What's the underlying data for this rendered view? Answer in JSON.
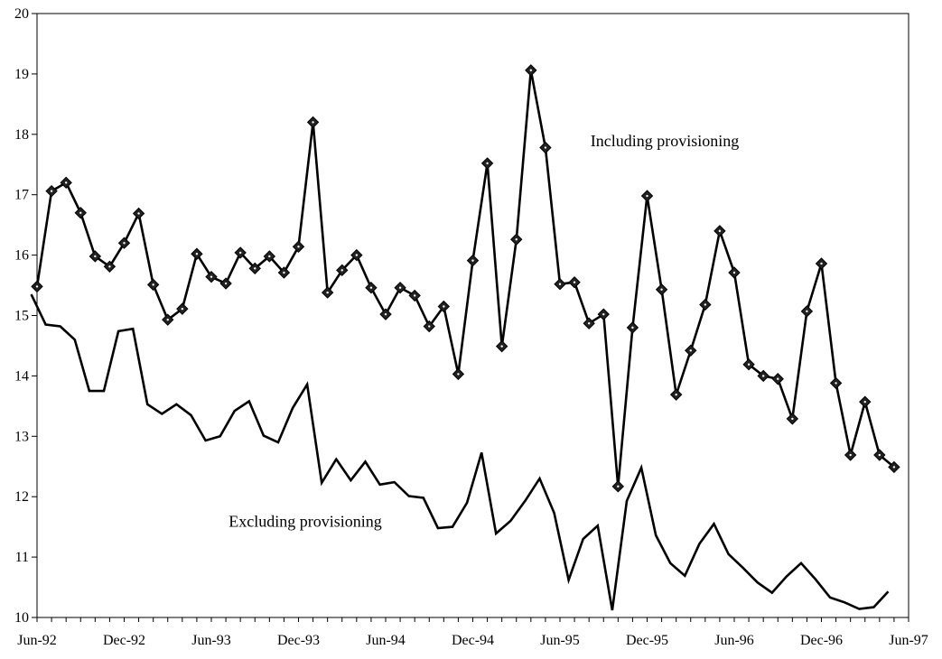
{
  "chart_data": {
    "type": "line",
    "title": "",
    "xlabel": "",
    "ylabel": "",
    "ylim": [
      10,
      20
    ],
    "yticks": [
      10,
      11,
      12,
      13,
      14,
      15,
      16,
      17,
      18,
      19,
      20
    ],
    "x_tick_labels": [
      "Jun-92",
      "Dec-92",
      "Jun-93",
      "Dec-93",
      "Jun-94",
      "Dec-94",
      "Jun-95",
      "Dec-95",
      "Jun-96",
      "Dec-96",
      "Jun-97"
    ],
    "x_tick_positions": [
      0,
      6,
      12,
      18,
      24,
      30,
      36,
      42,
      48,
      54,
      60
    ],
    "x_range": [
      0,
      60
    ],
    "grid": false,
    "legend": "none",
    "series": [
      {
        "label": "Including provisioning",
        "marker": "diamond",
        "color": "#000000",
        "x_start": 0,
        "values": [
          15.48,
          17.06,
          17.2,
          16.7,
          15.98,
          15.81,
          16.2,
          16.69,
          15.51,
          14.93,
          15.11,
          16.02,
          15.64,
          15.53,
          16.04,
          15.78,
          15.98,
          15.71,
          16.14,
          18.2,
          15.38,
          15.75,
          16.0,
          15.46,
          15.02,
          15.46,
          15.33,
          14.82,
          15.15,
          14.03,
          15.91,
          17.52,
          14.49,
          16.26,
          19.06,
          17.78,
          15.52,
          15.55,
          14.87,
          15.02,
          12.17,
          14.8,
          16.98,
          15.43,
          13.69,
          14.42,
          15.18,
          16.4,
          15.71,
          14.19,
          14.0,
          13.95,
          13.29,
          15.07,
          15.86,
          13.88,
          12.69,
          13.57,
          12.69,
          12.49
        ]
      },
      {
        "label": "Excluding provisioning",
        "marker": "none",
        "color": "#000000",
        "x_start": -0.4,
        "values": [
          15.35,
          14.85,
          14.82,
          14.6,
          13.75,
          13.75,
          14.74,
          14.78,
          13.53,
          13.37,
          13.53,
          13.35,
          12.93,
          13.0,
          13.42,
          13.58,
          13.01,
          12.9,
          13.47,
          13.86,
          12.23,
          12.62,
          12.27,
          12.58,
          12.2,
          12.24,
          12.01,
          11.98,
          11.48,
          11.5,
          11.9,
          12.73,
          11.39,
          11.6,
          11.93,
          12.3,
          11.73,
          10.62,
          11.3,
          11.52,
          10.12,
          11.93,
          12.48,
          11.36,
          10.9,
          10.69,
          11.22,
          11.55,
          11.05,
          10.82,
          10.58,
          10.41,
          10.68,
          10.9,
          10.63,
          10.33,
          10.25,
          10.14,
          10.17,
          10.43
        ]
      }
    ],
    "annotations": [
      {
        "text": "Including provisioning",
        "x": 38.1,
        "y": 17.8
      },
      {
        "text": "Excluding provisioning",
        "x": 13.2,
        "y": 11.5
      }
    ]
  }
}
